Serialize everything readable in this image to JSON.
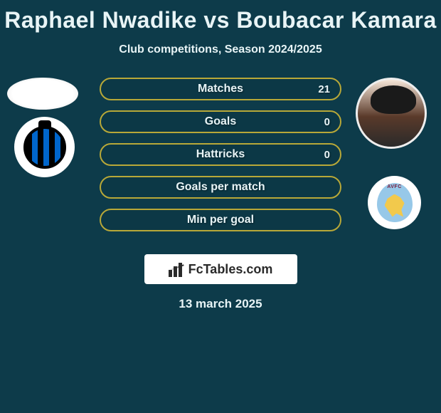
{
  "title": "Raphael Nwadike vs Boubacar Kamara",
  "subtitle": "Club competitions, Season 2024/2025",
  "date": "13 march 2025",
  "branding": {
    "text": "FcTables.com"
  },
  "colors": {
    "background": "#0d3b4a",
    "pill_border": "#b8a838",
    "text": "#e8f4f6"
  },
  "players": {
    "left": {
      "name": "Raphael Nwadike",
      "club_badge": "club-brugge"
    },
    "right": {
      "name": "Boubacar Kamara",
      "club_badge": "aston-villa"
    }
  },
  "stats": [
    {
      "label": "Matches",
      "value_right": "21"
    },
    {
      "label": "Goals",
      "value_right": "0"
    },
    {
      "label": "Hattricks",
      "value_right": "0"
    },
    {
      "label": "Goals per match",
      "value_right": ""
    },
    {
      "label": "Min per goal",
      "value_right": ""
    }
  ]
}
